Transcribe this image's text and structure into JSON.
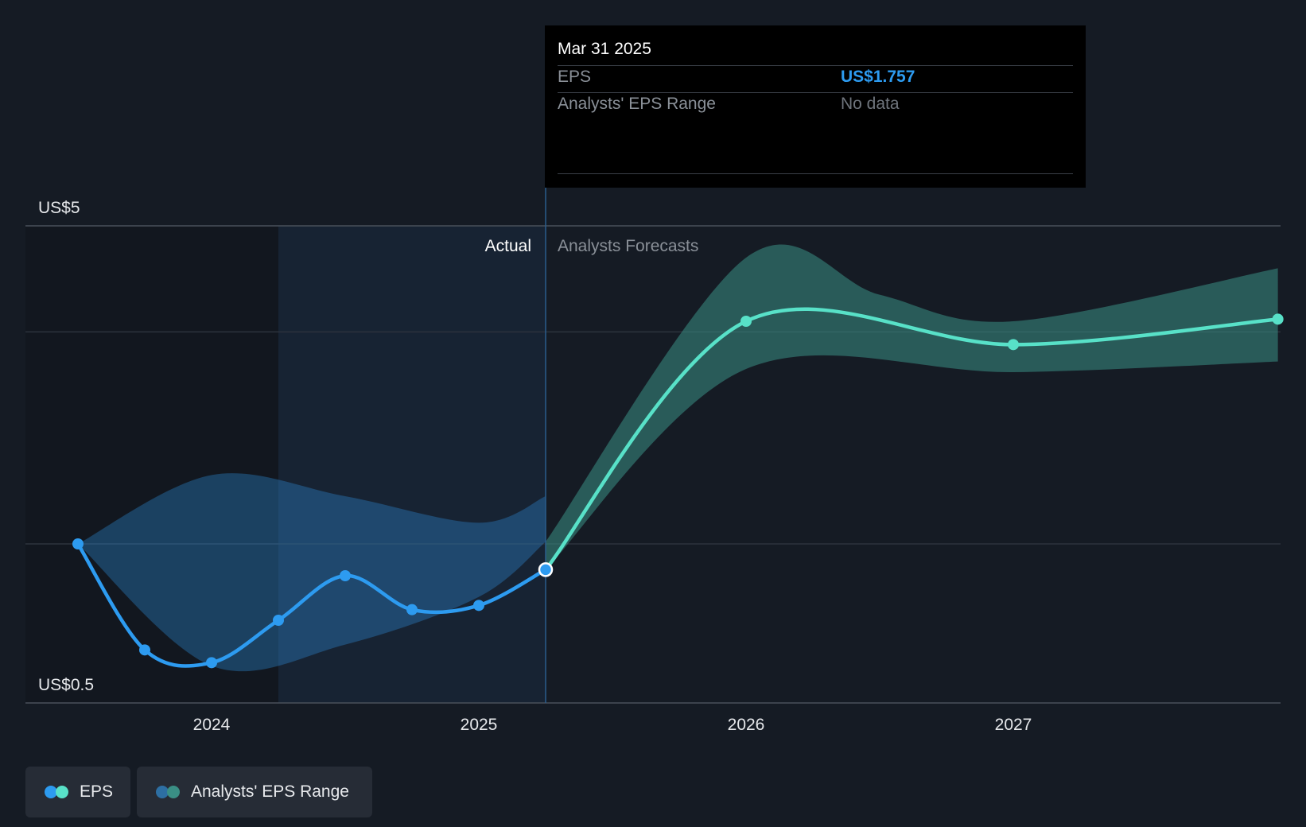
{
  "chart_data": {
    "type": "line",
    "y_axis": {
      "min": 0.5,
      "max": 5,
      "top_label": "US$5",
      "bottom_label": "US$0.5"
    },
    "x_axis": {
      "ticks": [
        "2024",
        "2025",
        "2026",
        "2027"
      ]
    },
    "section_labels": {
      "actual": "Actual",
      "forecast": "Analysts Forecasts"
    },
    "series": [
      {
        "name": "EPS",
        "color": "#2d9bf0",
        "points": [
          {
            "x": 2023.5,
            "y": 2.0
          },
          {
            "x": 2023.75,
            "y": 1.0
          },
          {
            "x": 2024.0,
            "y": 0.88
          },
          {
            "x": 2024.25,
            "y": 1.28
          },
          {
            "x": 2024.5,
            "y": 1.7
          },
          {
            "x": 2024.75,
            "y": 1.38
          },
          {
            "x": 2025.0,
            "y": 1.42
          },
          {
            "x": 2025.25,
            "y": 1.757
          }
        ]
      },
      {
        "name": "EPS",
        "color": "#58e1c8",
        "points": [
          {
            "x": 2025.25,
            "y": 1.757
          },
          {
            "x": 2026.0,
            "y": 4.1
          },
          {
            "x": 2027.0,
            "y": 3.88
          },
          {
            "x": 2027.99,
            "y": 4.12
          }
        ]
      }
    ],
    "ranges": [
      {
        "name": "Analysts' EPS Range",
        "color": "#2d8fdc",
        "upper": [
          {
            "x": 2023.5,
            "y": 2.0
          },
          {
            "x": 2024.0,
            "y": 2.65
          },
          {
            "x": 2024.5,
            "y": 2.45
          },
          {
            "x": 2025.0,
            "y": 2.2
          },
          {
            "x": 2025.25,
            "y": 2.45
          }
        ],
        "lower": [
          {
            "x": 2023.5,
            "y": 2.0
          },
          {
            "x": 2024.0,
            "y": 0.85
          },
          {
            "x": 2024.5,
            "y": 1.05
          },
          {
            "x": 2025.0,
            "y": 1.5
          },
          {
            "x": 2025.25,
            "y": 2.02
          }
        ]
      },
      {
        "name": "Analysts' EPS Range",
        "color": "#3a8f85",
        "upper": [
          {
            "x": 2025.25,
            "y": 2.02
          },
          {
            "x": 2026.0,
            "y": 4.7
          },
          {
            "x": 2026.5,
            "y": 4.35
          },
          {
            "x": 2027.0,
            "y": 4.1
          },
          {
            "x": 2027.99,
            "y": 4.6
          }
        ],
        "lower": [
          {
            "x": 2025.25,
            "y": 1.757
          },
          {
            "x": 2026.0,
            "y": 3.65
          },
          {
            "x": 2027.0,
            "y": 3.62
          },
          {
            "x": 2027.99,
            "y": 3.72
          }
        ]
      }
    ]
  },
  "tooltip": {
    "date": "Mar 31 2025",
    "rows": [
      {
        "label": "EPS",
        "value": "US$1.757",
        "color": "#2d9bf0"
      },
      {
        "label": "Analysts' EPS Range",
        "value": "No data",
        "color": "#6f757d"
      }
    ]
  },
  "legend": [
    {
      "label": "EPS",
      "colors": [
        "#2d9bf0",
        "#58e1c8"
      ]
    },
    {
      "label": "Analysts' EPS Range",
      "colors": [
        "#2d6fa3",
        "#3a8f85"
      ]
    }
  ]
}
